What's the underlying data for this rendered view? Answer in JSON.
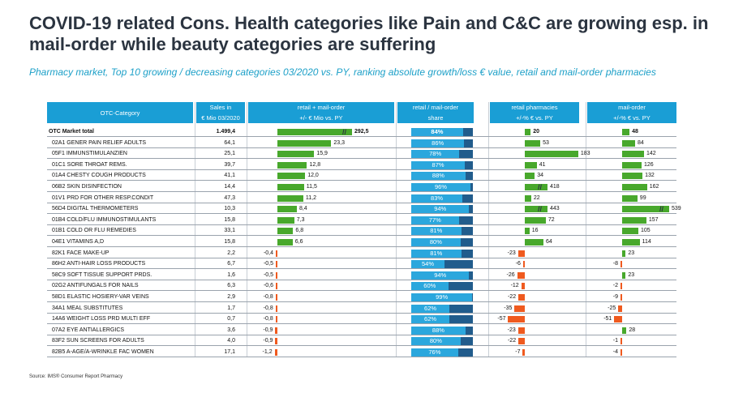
{
  "title": "COVID-19 related Cons. Health categories like Pain and C&C are growing esp. in mail-order while beauty categories are suffering",
  "subtitle": "Pharmacy market, Top 10 growing / decreasing categories 03/2020 vs. PY, ranking absolute growth/loss € value, retail and mail-order pharmacies",
  "headers": {
    "category": "OTC-Category",
    "sales_l1": "Sales in",
    "sales_l2": "€ Mio 03/2020",
    "rm_l1": "retail + mail-order",
    "rm_l2": "+/- € Mio vs. PY",
    "share_l1": "retail / mail-order",
    "share_l2": "share",
    "retail_l1": "retail pharmacies",
    "retail_l2": "+/-% € vs. PY",
    "mail_l1": "mail-order",
    "mail_l2": "+/-% € vs. PY"
  },
  "source": "Source: IMS® Consumer Report Pharmacy",
  "colors": {
    "header": "#1a9ed5",
    "positive": "#48a82c",
    "negative": "#ef5a1f",
    "share_retail": "#2ba7dd",
    "share_mail": "#215c8c"
  },
  "chart_data": {
    "type": "table",
    "columns": [
      "OTC-Category",
      "Sales in € Mio 03/2020",
      "retail + mail-order +/- € Mio vs. PY",
      "retail / mail-order share",
      "retail pharmacies +/-% € vs. PY",
      "mail-order +/-% € vs. PY"
    ],
    "rows": [
      {
        "category": "OTC Market total",
        "sales": "1.499,4",
        "rm": 292.5,
        "rm_text": "292,5",
        "share": 84,
        "share_text": "84%",
        "retail": 20,
        "retail_text": "20",
        "mail": 48,
        "mail_text": "48",
        "rm_broken": true
      },
      {
        "category": "02A1 GENER PAIN RELIEF ADULTS",
        "sales": "64,1",
        "rm": 23.3,
        "rm_text": "23,3",
        "share": 86,
        "share_text": "86%",
        "retail": 53,
        "retail_text": "53",
        "mail": 84,
        "mail_text": "84"
      },
      {
        "category": "05F1 IMMUNSTIMULANZIEN",
        "sales": "25,1",
        "rm": 15.9,
        "rm_text": "15,9",
        "share": 78,
        "share_text": "78%",
        "retail": 183,
        "retail_text": "183",
        "mail": 142,
        "mail_text": "142"
      },
      {
        "category": "01C1 SORE THROAT REMS.",
        "sales": "39,7",
        "rm": 12.8,
        "rm_text": "12,8",
        "share": 87,
        "share_text": "87%",
        "retail": 41,
        "retail_text": "41",
        "mail": 126,
        "mail_text": "126"
      },
      {
        "category": "01A4 CHESTY COUGH PRODUCTS",
        "sales": "41,1",
        "rm": 12.0,
        "rm_text": "12,0",
        "share": 88,
        "share_text": "88%",
        "retail": 34,
        "retail_text": "34",
        "mail": 132,
        "mail_text": "132"
      },
      {
        "category": "06B2 SKIN DISINFECTION",
        "sales": "14,4",
        "rm": 11.5,
        "rm_text": "11,5",
        "share": 96,
        "share_text": "96%",
        "retail": 418,
        "retail_text": "418",
        "mail": 162,
        "mail_text": "162",
        "retail_broken": true
      },
      {
        "category": "01V1 PRD FOR OTHER RESP.CONDIT",
        "sales": "47,3",
        "rm": 11.2,
        "rm_text": "11,2",
        "share": 83,
        "share_text": "83%",
        "retail": 22,
        "retail_text": "22",
        "mail": 99,
        "mail_text": "99"
      },
      {
        "category": "56D4 DIGITAL THERMOMETERS",
        "sales": "10,3",
        "rm": 8.4,
        "rm_text": "8,4",
        "share": 94,
        "share_text": "94%",
        "retail": 443,
        "retail_text": "443",
        "mail": 539,
        "mail_text": "539",
        "retail_broken": true,
        "mail_broken": true
      },
      {
        "category": "01B4 COLD/FLU IMMUNOSTIMULANTS",
        "sales": "15,8",
        "rm": 7.3,
        "rm_text": "7,3",
        "share": 77,
        "share_text": "77%",
        "retail": 72,
        "retail_text": "72",
        "mail": 157,
        "mail_text": "157"
      },
      {
        "category": "01B1 COLD OR FLU REMEDIES",
        "sales": "33,1",
        "rm": 6.8,
        "rm_text": "6,8",
        "share": 81,
        "share_text": "81%",
        "retail": 16,
        "retail_text": "16",
        "mail": 105,
        "mail_text": "105"
      },
      {
        "category": "04E1 VITAMINS A,D",
        "sales": "15,8",
        "rm": 6.6,
        "rm_text": "6,6",
        "share": 80,
        "share_text": "80%",
        "retail": 64,
        "retail_text": "64",
        "mail": 114,
        "mail_text": "114"
      },
      {
        "category": "82K1 FACE MAKE-UP",
        "sales": "2,2",
        "rm": -0.4,
        "rm_text": "-0,4",
        "share": 81,
        "share_text": "81%",
        "retail": -23,
        "retail_text": "-23",
        "mail": 23,
        "mail_text": "23"
      },
      {
        "category": "86H2 ANTI-HAIR LOSS PRODUCTS",
        "sales": "6,7",
        "rm": -0.5,
        "rm_text": "-0,5",
        "share": 54,
        "share_text": "54%",
        "retail": -6,
        "retail_text": "-6",
        "mail": -8,
        "mail_text": "-8"
      },
      {
        "category": "58C9 SOFT TISSUE SUPPORT PRDS.",
        "sales": "1,6",
        "rm": -0.5,
        "rm_text": "-0,5",
        "share": 94,
        "share_text": "94%",
        "retail": -26,
        "retail_text": "-26",
        "mail": 23,
        "mail_text": "23"
      },
      {
        "category": "02G2 ANTIFUNGALS FOR NAILS",
        "sales": "6,3",
        "rm": -0.6,
        "rm_text": "-0,6",
        "share": 60,
        "share_text": "60%",
        "retail": -12,
        "retail_text": "-12",
        "mail": -2,
        "mail_text": "-2"
      },
      {
        "category": "58D1 ELASTIC HOSIERY-VAR VEINS",
        "sales": "2,9",
        "rm": -0.8,
        "rm_text": "-0,8",
        "share": 99,
        "share_text": "99%",
        "retail": -22,
        "retail_text": "-22",
        "mail": -9,
        "mail_text": "-9"
      },
      {
        "category": "34A1 MEAL SUBSTITUTES",
        "sales": "1,7",
        "rm": -0.8,
        "rm_text": "-0,8",
        "share": 62,
        "share_text": "62%",
        "retail": -35,
        "retail_text": "-35",
        "mail": -25,
        "mail_text": "-25"
      },
      {
        "category": "14A6 WEIGHT LOSS PRD MULTI EFF",
        "sales": "0,7",
        "rm": -0.8,
        "rm_text": "-0,8",
        "share": 62,
        "share_text": "62%",
        "retail": -57,
        "retail_text": "-57",
        "mail": -51,
        "mail_text": "-51"
      },
      {
        "category": "07A2 EYE ANTIALLERGICS",
        "sales": "3,6",
        "rm": -0.9,
        "rm_text": "-0,9",
        "share": 88,
        "share_text": "88%",
        "retail": -23,
        "retail_text": "-23",
        "mail": 28,
        "mail_text": "28"
      },
      {
        "category": "83F2 SUN SCREENS FOR ADULTS",
        "sales": "4,0",
        "rm": -0.9,
        "rm_text": "-0,9",
        "share": 80,
        "share_text": "80%",
        "retail": -22,
        "retail_text": "-22",
        "mail": -1,
        "mail_text": "-1"
      },
      {
        "category": "82B5 A-AGE/A-WRINKLE FAC WOMEN",
        "sales": "17,1",
        "rm": -1.2,
        "rm_text": "-1,2",
        "share": 76,
        "share_text": "76%",
        "retail": -7,
        "retail_text": "-7",
        "mail": -4,
        "mail_text": "-4"
      }
    ]
  }
}
